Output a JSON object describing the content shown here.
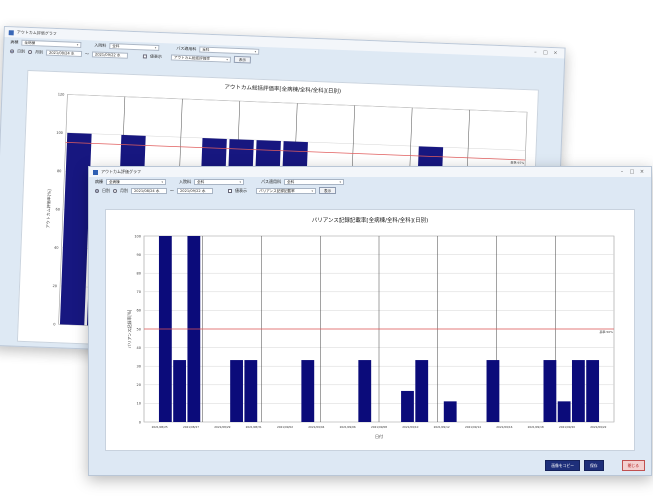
{
  "colors": {
    "bar": "#0b0b7a",
    "ref_line": "#e05656",
    "window_bg": "#dde8f4",
    "panel_bg": "#ffffff"
  },
  "back_window": {
    "title": "アウトカム評価グラフ",
    "row1": {
      "ward_label": "病棟",
      "ward_value": "全病棟",
      "admission_label": "入院料",
      "admission_value": "全科",
      "path_label": "パス適用科",
      "path_value": "全科"
    },
    "row2": {
      "daily_label": "日別",
      "monthly_label": "月別",
      "date_from": "2021/08/24 水",
      "tilde": "～",
      "date_to": "2021/09/22 水",
      "value_label": "値表示",
      "metric_value": "アウトカム総括評価率",
      "show_button": "表示"
    },
    "chart_title": "アウトカム総括評価率[全病棟/全科/全科](日別)",
    "ylabel": "アウトカム評価率[%]",
    "ref_label": "基準:95%"
  },
  "front_window": {
    "title": "アウトカム評価グラフ",
    "row1": {
      "ward_label": "病棟",
      "ward_value": "全病棟",
      "admission_label": "入院料",
      "admission_value": "全科",
      "path_label": "パス適用科",
      "path_value": "全科"
    },
    "row2": {
      "daily_label": "日別",
      "monthly_label": "月別",
      "date_from": "2021/08/24 水",
      "tilde": "～",
      "date_to": "2021/09/22 水",
      "value_label": "値表示",
      "metric_value": "バリアンス記録記載率",
      "show_button": "表示"
    },
    "chart_title": "バリアンス記録記載率[全病棟/全科/全科](日別)",
    "xlabel": "日付",
    "ylabel": "バリアンス記録率[%]",
    "ref_label": "基準:50%",
    "buttons": {
      "copy": "画像をコピー",
      "save": "保存",
      "close": "閉じる"
    }
  },
  "chart_data": [
    {
      "type": "bar",
      "title": "アウトカム総括評価率[全病棟/全科/全科](日別)",
      "ylabel": "アウトカム評価率[%]",
      "ylim": [
        0,
        120
      ],
      "y_ticks": [
        "0",
        "20",
        "40",
        "60",
        "80",
        "100",
        "120"
      ],
      "reference_line": 95,
      "values": [
        100,
        80,
        100,
        80,
        0,
        100,
        100,
        100,
        100,
        0,
        0,
        75,
        80,
        100,
        85,
        0,
        89
      ],
      "grid": true
    },
    {
      "type": "bar",
      "title": "バリアンス記録記載率[全病棟/全科/全科](日別)",
      "xlabel": "日付",
      "ylabel": "バリアンス記録率[%]",
      "ylim": [
        0,
        100
      ],
      "y_ticks": [
        "0",
        "10",
        "20",
        "30",
        "40",
        "50",
        "60",
        "70",
        "80",
        "90",
        "100"
      ],
      "reference_line": 50,
      "x_tick_labels": [
        "2021/08/25",
        "2021/08/27",
        "2021/08/29",
        "2021/08/31",
        "2021/09/02",
        "2021/09/04",
        "2021/09/06",
        "2021/09/08",
        "2021/09/10",
        "2021/09/12",
        "2021/09/14",
        "2021/09/16",
        "2021/09/18",
        "2021/09/20",
        "2021/09/22"
      ],
      "values": [
        0,
        100,
        33.3,
        100,
        0,
        0,
        33.3,
        33.3,
        0,
        0,
        0,
        33.3,
        0,
        0,
        0,
        33.3,
        0,
        0,
        16.7,
        33.3,
        0,
        11.1,
        0,
        0,
        33.3,
        0,
        0,
        0,
        33.3,
        11.1,
        33.3,
        33.3,
        0
      ],
      "grid": true
    }
  ]
}
